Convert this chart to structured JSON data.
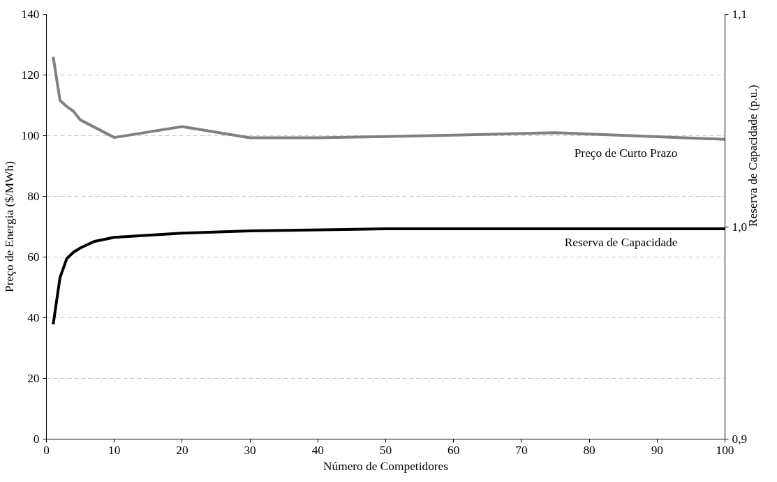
{
  "chart_data": {
    "type": "line",
    "xlabel": "Número de Competidores",
    "ylabel": "Preço de Energia ($/MWh)",
    "y2label": "Reserva de Capacidade (p.u.)",
    "xlim": [
      0,
      100
    ],
    "xticks": [
      0,
      10,
      20,
      30,
      40,
      50,
      60,
      70,
      80,
      90,
      100
    ],
    "ylim": [
      0,
      140
    ],
    "yticks": [
      0,
      20,
      40,
      60,
      80,
      100,
      120,
      140
    ],
    "y2lim": [
      0.9,
      1.1
    ],
    "y2ticks": [
      {
        "value": 0.9,
        "label": "0,9"
      },
      {
        "value": 1.0,
        "label": "1,0"
      },
      {
        "value": 1.1,
        "label": "1,1"
      }
    ],
    "grid": "y",
    "series": [
      {
        "name": "Preço de Curto Prazo",
        "color": "#808080",
        "x": [
          1,
          2,
          3,
          4,
          5,
          10,
          20,
          30,
          40,
          50,
          60,
          75,
          100
        ],
        "values": [
          126,
          111.6,
          109.6,
          108,
          105.2,
          99.4,
          103,
          99.3,
          99.3,
          99.7,
          100.2,
          101,
          98.8
        ]
      },
      {
        "name": "Reserva de Capacidade",
        "color": "#000000",
        "axis": "y2",
        "x": [
          1,
          2,
          3,
          4,
          5,
          7,
          10,
          15,
          20,
          30,
          50,
          70,
          100
        ],
        "values": [
          0.954,
          0.976,
          0.985,
          0.988,
          0.99,
          0.993,
          0.995,
          0.996,
          0.997,
          0.998,
          0.999,
          0.999,
          0.999
        ]
      }
    ]
  }
}
